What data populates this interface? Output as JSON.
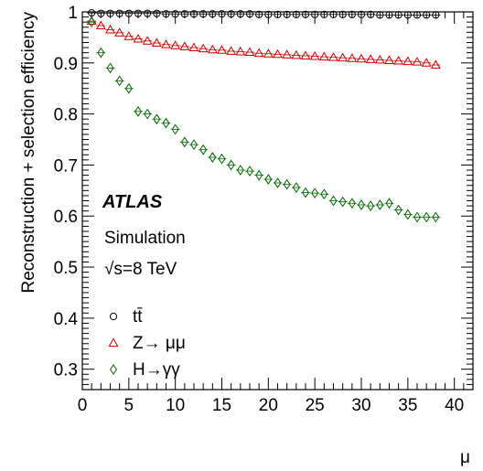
{
  "chart_data": {
    "type": "scatter",
    "title": "",
    "xlabel": "μ",
    "ylabel": "Reconstruction + selection efficiency",
    "xlim": [
      0,
      42
    ],
    "ylim": [
      0.26,
      1.0
    ],
    "x_ticks": [
      "0",
      "5",
      "10",
      "15",
      "20",
      "25",
      "30",
      "35",
      "40"
    ],
    "y_ticks": [
      "0.3",
      "0.4",
      "0.5",
      "0.6",
      "0.7",
      "0.8",
      "0.9",
      "1"
    ],
    "annotations": {
      "experiment": "ATLAS",
      "status": "Simulation",
      "energy": "√s=8 TeV"
    },
    "legend_position": "bottom-left",
    "series": [
      {
        "name": "tt̄",
        "marker": "circle",
        "color": "#000000",
        "x": [
          1,
          2,
          3,
          4,
          5,
          6,
          7,
          8,
          9,
          10,
          11,
          12,
          13,
          14,
          15,
          16,
          17,
          18,
          19,
          20,
          21,
          22,
          23,
          24,
          25,
          26,
          27,
          28,
          29,
          30,
          31,
          32,
          33,
          34,
          35,
          36,
          37,
          38
        ],
        "y": [
          0.998,
          0.997,
          0.997,
          0.997,
          0.997,
          0.997,
          0.997,
          0.997,
          0.996,
          0.996,
          0.996,
          0.996,
          0.996,
          0.996,
          0.996,
          0.996,
          0.996,
          0.996,
          0.995,
          0.995,
          0.995,
          0.995,
          0.995,
          0.995,
          0.995,
          0.995,
          0.995,
          0.995,
          0.995,
          0.995,
          0.995,
          0.994,
          0.994,
          0.994,
          0.994,
          0.994,
          0.994,
          0.994
        ]
      },
      {
        "name": "Z→ μμ",
        "marker": "triangle",
        "color": "#cc0000",
        "x": [
          1,
          2,
          3,
          4,
          5,
          6,
          7,
          8,
          9,
          10,
          11,
          12,
          13,
          14,
          15,
          16,
          17,
          18,
          19,
          20,
          21,
          22,
          23,
          24,
          25,
          26,
          27,
          28,
          29,
          30,
          31,
          32,
          33,
          34,
          35,
          36,
          37,
          38
        ],
        "y": [
          0.982,
          0.973,
          0.965,
          0.959,
          0.952,
          0.947,
          0.943,
          0.939,
          0.936,
          0.934,
          0.932,
          0.93,
          0.928,
          0.926,
          0.925,
          0.923,
          0.922,
          0.921,
          0.919,
          0.918,
          0.917,
          0.916,
          0.915,
          0.914,
          0.913,
          0.912,
          0.911,
          0.91,
          0.909,
          0.908,
          0.907,
          0.906,
          0.905,
          0.904,
          0.903,
          0.902,
          0.9,
          0.896
        ]
      },
      {
        "name": "H→γγ",
        "marker": "diamond",
        "color": "#006600",
        "x": [
          1,
          2,
          3,
          4,
          5,
          6,
          7,
          8,
          9,
          10,
          11,
          12,
          13,
          14,
          15,
          16,
          17,
          18,
          19,
          20,
          21,
          22,
          23,
          24,
          25,
          26,
          27,
          28,
          29,
          30,
          31,
          32,
          33,
          34,
          35,
          36,
          37,
          38
        ],
        "y": [
          0.98,
          0.92,
          0.89,
          0.865,
          0.85,
          0.805,
          0.8,
          0.79,
          0.782,
          0.77,
          0.745,
          0.74,
          0.73,
          0.715,
          0.712,
          0.7,
          0.69,
          0.688,
          0.68,
          0.672,
          0.665,
          0.662,
          0.656,
          0.646,
          0.645,
          0.643,
          0.63,
          0.628,
          0.625,
          0.622,
          0.62,
          0.622,
          0.625,
          0.612,
          0.603,
          0.598,
          0.598,
          0.598
        ]
      }
    ]
  }
}
